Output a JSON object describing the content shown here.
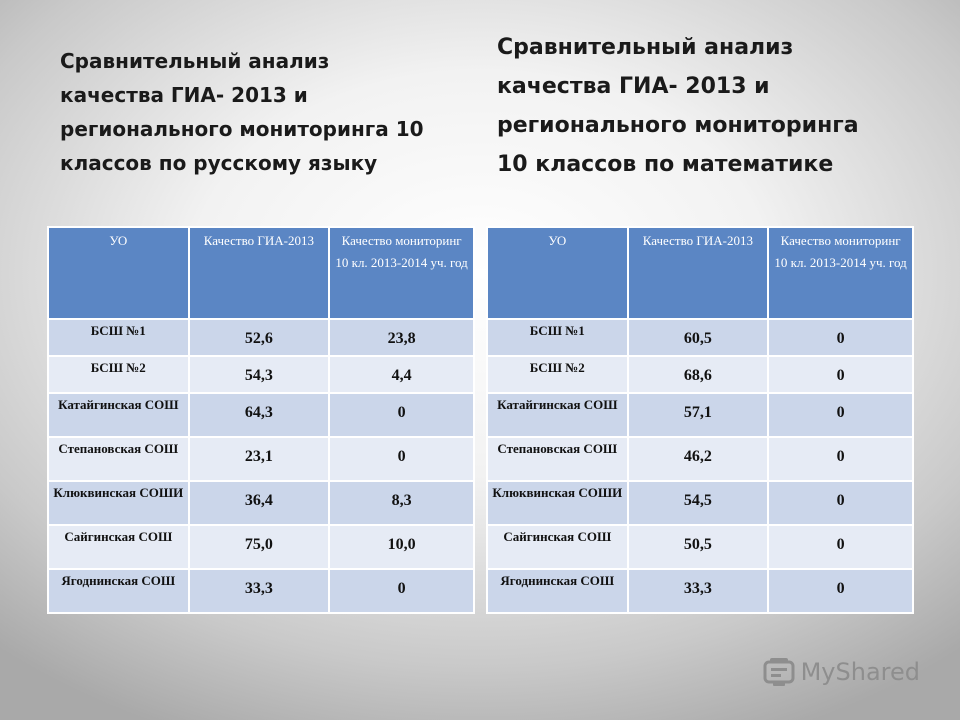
{
  "titles": {
    "left": "Сравнительный анализ\nкачества ГИА- 2013 и\nрегионального мониторинга 10\nклассов по русскому языку",
    "right": "Сравнительный анализ\nкачества ГИА- 2013 и\nрегионального мониторинга\n10 классов по математике"
  },
  "headers": [
    "УО",
    "Качество ГИА-2013",
    "Качество мониторинг 10 кл. 2013-2014 уч. год"
  ],
  "tables": {
    "left": {
      "rows": [
        {
          "school": "БСШ №1",
          "gia": "52,6",
          "monitoring": "23,8"
        },
        {
          "school": "БСШ №2",
          "gia": "54,3",
          "monitoring": "4,4"
        },
        {
          "school": "Катайгинская СОШ",
          "gia": "64,3",
          "monitoring": "0"
        },
        {
          "school": "Степановская СОШ",
          "gia": "23,1",
          "monitoring": "0"
        },
        {
          "school": "Клюквинская СОШИ",
          "gia": "36,4",
          "monitoring": "8,3"
        },
        {
          "school": "Сайгинская СОШ",
          "gia": "75,0",
          "monitoring": "10,0"
        },
        {
          "school": "Ягоднинская СОШ",
          "gia": "33,3",
          "monitoring": "0"
        }
      ]
    },
    "right": {
      "rows": [
        {
          "school": "БСШ №1",
          "gia": "60,5",
          "monitoring": "0"
        },
        {
          "school": "БСШ №2",
          "gia": "68,6",
          "monitoring": "0"
        },
        {
          "school": "Катайгинская СОШ",
          "gia": "57,1",
          "monitoring": "0"
        },
        {
          "school": "Степановская СОШ",
          "gia": "46,2",
          "monitoring": "0"
        },
        {
          "school": "Клюквинская СОШИ",
          "gia": "54,5",
          "monitoring": "0"
        },
        {
          "school": "Сайгинская СОШ",
          "gia": "50,5",
          "monitoring": "0"
        },
        {
          "school": "Ягоднинская СОШ",
          "gia": "33,3",
          "monitoring": "0"
        }
      ]
    }
  },
  "watermark": {
    "text": "MyShared",
    "icon": "mycard-logo-icon"
  }
}
